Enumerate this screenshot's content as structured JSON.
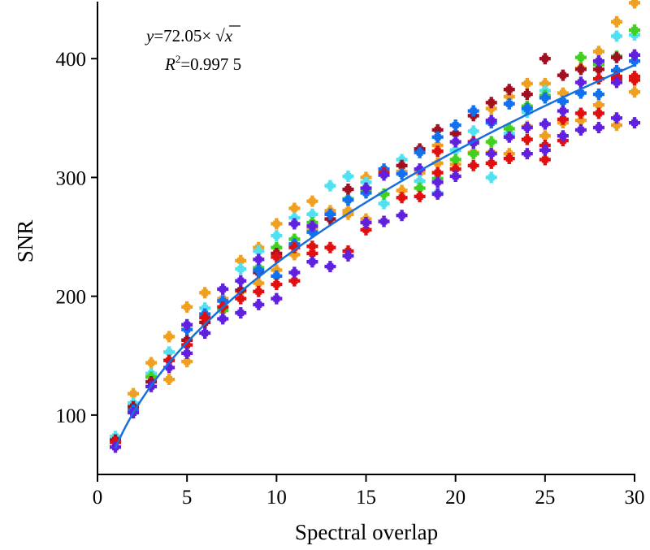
{
  "chart_data": {
    "type": "scatter",
    "title": "",
    "xlabel": "Spectral overlap",
    "ylabel": "SNR",
    "xlim": [
      0,
      30
    ],
    "ylim": [
      50,
      448
    ],
    "xticks": [
      0,
      5,
      10,
      15,
      20,
      25,
      30
    ],
    "yticks": [
      100,
      200,
      300,
      400
    ],
    "grid": false,
    "legend": "none",
    "annotations": {
      "equation_y": "y",
      "equation_rest": "=72.05×",
      "equation_sqrt": "√",
      "equation_x": "x",
      "r2_label": "R",
      "r2_sup": "2",
      "r2_value": "=0.997 5"
    },
    "fit": {
      "name": "fit curve",
      "formula": "y = 72.05 * sqrt(x)",
      "coefficient": 72.05,
      "r_squared": 0.9975,
      "x_range": [
        1,
        30
      ],
      "color": "#1670E0"
    },
    "x": [
      1,
      2,
      3,
      4,
      5,
      6,
      7,
      8,
      9,
      10,
      11,
      12,
      13,
      14,
      15,
      16,
      17,
      18,
      19,
      20,
      21,
      22,
      23,
      24,
      25,
      26,
      27,
      28,
      29,
      30
    ],
    "series": [
      {
        "name": "orange",
        "color": "#F0A020",
        "points": [
          [
            2,
            118
          ],
          [
            3,
            144
          ],
          [
            4,
            166
          ],
          [
            4,
            130
          ],
          [
            5,
            191
          ],
          [
            5,
            145
          ],
          [
            6,
            203
          ],
          [
            7,
            198
          ],
          [
            8,
            230
          ],
          [
            8,
            204
          ],
          [
            9,
            241
          ],
          [
            9,
            211
          ],
          [
            10,
            261
          ],
          [
            10,
            222
          ],
          [
            11,
            274
          ],
          [
            11,
            235
          ],
          [
            12,
            280
          ],
          [
            12,
            256
          ],
          [
            13,
            272
          ],
          [
            14,
            272
          ],
          [
            14,
            269
          ],
          [
            15,
            300
          ],
          [
            15,
            265
          ],
          [
            16,
            263
          ],
          [
            17,
            305
          ],
          [
            17,
            289
          ],
          [
            18,
            304
          ],
          [
            19,
            327
          ],
          [
            19,
            312
          ],
          [
            20,
            311
          ],
          [
            21,
            321
          ],
          [
            22,
            358
          ],
          [
            22,
            321
          ],
          [
            23,
            368
          ],
          [
            23,
            320
          ],
          [
            24,
            379
          ],
          [
            24,
            343
          ],
          [
            25,
            379
          ],
          [
            25,
            335
          ],
          [
            26,
            371
          ],
          [
            26,
            346
          ],
          [
            27,
            392
          ],
          [
            27,
            348
          ],
          [
            28,
            406
          ],
          [
            28,
            361
          ],
          [
            29,
            431
          ],
          [
            29,
            344
          ],
          [
            30,
            447
          ],
          [
            30,
            372
          ]
        ]
      },
      {
        "name": "cyan",
        "color": "#50E0F0",
        "points": [
          [
            1,
            82
          ],
          [
            2,
            110
          ],
          [
            3,
            135
          ],
          [
            4,
            153
          ],
          [
            6,
            190
          ],
          [
            8,
            223
          ],
          [
            9,
            238
          ],
          [
            10,
            251
          ],
          [
            11,
            266
          ],
          [
            12,
            269
          ],
          [
            13,
            293
          ],
          [
            14,
            301
          ],
          [
            15,
            296
          ],
          [
            16,
            278
          ],
          [
            17,
            315
          ],
          [
            18,
            297
          ],
          [
            19,
            287
          ],
          [
            20,
            323
          ],
          [
            21,
            339
          ],
          [
            22,
            300
          ],
          [
            23,
            337
          ],
          [
            24,
            355
          ],
          [
            25,
            373
          ],
          [
            29,
            419
          ],
          [
            30,
            420
          ]
        ]
      },
      {
        "name": "green",
        "color": "#40D020",
        "points": [
          [
            3,
            132
          ],
          [
            7,
            188
          ],
          [
            9,
            224
          ],
          [
            10,
            241
          ],
          [
            11,
            248
          ],
          [
            12,
            262
          ],
          [
            14,
            282
          ],
          [
            15,
            289
          ],
          [
            16,
            286
          ],
          [
            18,
            291
          ],
          [
            19,
            299
          ],
          [
            20,
            315
          ],
          [
            21,
            320
          ],
          [
            22,
            330
          ],
          [
            23,
            341
          ],
          [
            24,
            360
          ],
          [
            25,
            369
          ],
          [
            27,
            401
          ],
          [
            28,
            395
          ],
          [
            29,
            402
          ],
          [
            30,
            424
          ]
        ]
      },
      {
        "name": "dark red",
        "color": "#A01020",
        "points": [
          [
            1,
            79
          ],
          [
            2,
            107
          ],
          [
            3,
            128
          ],
          [
            5,
            163
          ],
          [
            6,
            178
          ],
          [
            8,
            205
          ],
          [
            9,
            220
          ],
          [
            10,
            236
          ],
          [
            13,
            265
          ],
          [
            14,
            290
          ],
          [
            17,
            310
          ],
          [
            18,
            324
          ],
          [
            19,
            340
          ],
          [
            20,
            337
          ],
          [
            21,
            352
          ],
          [
            22,
            363
          ],
          [
            23,
            374
          ],
          [
            24,
            370
          ],
          [
            25,
            400
          ],
          [
            26,
            386
          ],
          [
            27,
            391
          ],
          [
            28,
            391
          ],
          [
            29,
            401
          ],
          [
            30,
            403
          ]
        ]
      },
      {
        "name": "blue",
        "color": "#1070F0",
        "points": [
          [
            2,
            104
          ],
          [
            5,
            172
          ],
          [
            6,
            185
          ],
          [
            7,
            196
          ],
          [
            9,
            222
          ],
          [
            10,
            217
          ],
          [
            11,
            244
          ],
          [
            12,
            254
          ],
          [
            13,
            269
          ],
          [
            14,
            281
          ],
          [
            15,
            287
          ],
          [
            16,
            307
          ],
          [
            17,
            303
          ],
          [
            18,
            321
          ],
          [
            19,
            334
          ],
          [
            20,
            344
          ],
          [
            21,
            356
          ],
          [
            22,
            346
          ],
          [
            23,
            362
          ],
          [
            24,
            358
          ],
          [
            25,
            367
          ],
          [
            26,
            364
          ],
          [
            27,
            371
          ],
          [
            28,
            370
          ],
          [
            29,
            390
          ],
          [
            30,
            398
          ]
        ]
      },
      {
        "name": "red",
        "color": "#E01010",
        "points": [
          [
            1,
            77
          ],
          [
            4,
            146
          ],
          [
            5,
            159
          ],
          [
            6,
            182
          ],
          [
            7,
            191
          ],
          [
            8,
            198
          ],
          [
            9,
            204
          ],
          [
            10,
            233
          ],
          [
            10,
            210
          ],
          [
            11,
            241
          ],
          [
            11,
            213
          ],
          [
            12,
            242
          ],
          [
            12,
            236
          ],
          [
            13,
            241
          ],
          [
            14,
            238
          ],
          [
            15,
            256
          ],
          [
            16,
            304
          ],
          [
            17,
            283
          ],
          [
            18,
            284
          ],
          [
            19,
            322
          ],
          [
            19,
            304
          ],
          [
            20,
            307
          ],
          [
            21,
            330
          ],
          [
            21,
            310
          ],
          [
            22,
            312
          ],
          [
            23,
            316
          ],
          [
            24,
            332
          ],
          [
            25,
            327
          ],
          [
            25,
            315
          ],
          [
            26,
            349
          ],
          [
            26,
            331
          ],
          [
            27,
            354
          ],
          [
            28,
            354
          ],
          [
            28,
            383
          ],
          [
            29,
            385
          ],
          [
            29,
            383
          ],
          [
            30,
            382
          ],
          [
            30,
            385
          ]
        ]
      },
      {
        "name": "violet",
        "color": "#6020E0",
        "points": [
          [
            1,
            73
          ],
          [
            2,
            102
          ],
          [
            3,
            124
          ],
          [
            4,
            140
          ],
          [
            5,
            176
          ],
          [
            5,
            152
          ],
          [
            6,
            169
          ],
          [
            7,
            206
          ],
          [
            7,
            181
          ],
          [
            8,
            213
          ],
          [
            8,
            186
          ],
          [
            9,
            231
          ],
          [
            9,
            193
          ],
          [
            10,
            198
          ],
          [
            11,
            261
          ],
          [
            11,
            220
          ],
          [
            12,
            259
          ],
          [
            12,
            229
          ],
          [
            13,
            225
          ],
          [
            14,
            234
          ],
          [
            15,
            291
          ],
          [
            15,
            262
          ],
          [
            16,
            302
          ],
          [
            16,
            263
          ],
          [
            17,
            268
          ],
          [
            18,
            307
          ],
          [
            19,
            286
          ],
          [
            19,
            296
          ],
          [
            20,
            330
          ],
          [
            20,
            301
          ],
          [
            21,
            329
          ],
          [
            22,
            348
          ],
          [
            22,
            320
          ],
          [
            23,
            334
          ],
          [
            24,
            342
          ],
          [
            24,
            320
          ],
          [
            25,
            345
          ],
          [
            25,
            323
          ],
          [
            26,
            356
          ],
          [
            26,
            335
          ],
          [
            27,
            380
          ],
          [
            27,
            340
          ],
          [
            28,
            398
          ],
          [
            28,
            342
          ],
          [
            29,
            380
          ],
          [
            29,
            350
          ],
          [
            30,
            403
          ],
          [
            30,
            346
          ]
        ]
      }
    ]
  }
}
